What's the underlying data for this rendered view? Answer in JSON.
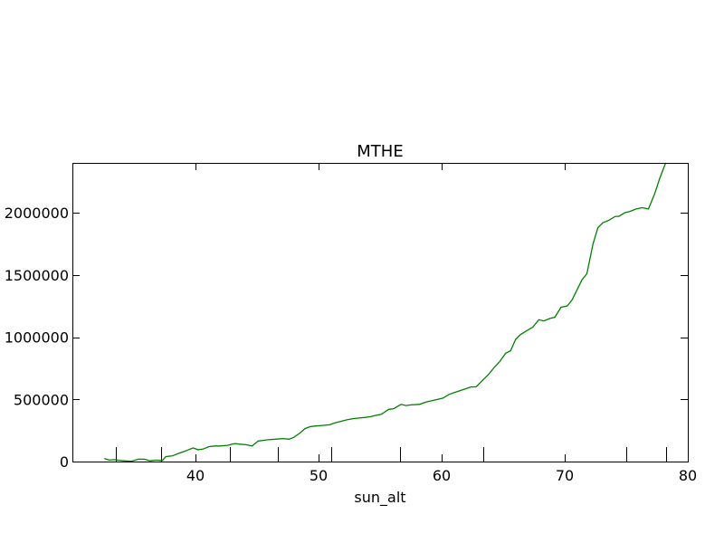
{
  "chart_data": {
    "type": "line",
    "title": "MTHE",
    "xlabel": "sun_alt",
    "ylabel": "",
    "xlim": [
      30,
      80
    ],
    "ylim": [
      0,
      2400000
    ],
    "xticks": [
      40,
      50,
      60,
      70,
      80
    ],
    "xtick_labels": [
      "40",
      "50",
      "60",
      "70",
      "80"
    ],
    "yticks": [
      0,
      500000,
      1000000,
      1500000,
      2000000
    ],
    "ytick_labels": [
      "0",
      "500000",
      "1000000",
      "1500000",
      "2000000"
    ],
    "minor_bottom_ticks": [
      33.5,
      37.2,
      42.8,
      46.7,
      51.0,
      56.6,
      63.4,
      75.0,
      78.2
    ],
    "grid": false,
    "legend": "none",
    "series_color": "#008000",
    "series": [
      {
        "x": [
          32.6,
          33.0,
          33.4,
          33.8,
          34.3,
          34.8,
          35.4,
          35.9,
          36.3,
          36.8,
          37.3,
          37.6,
          38.1,
          38.6,
          39.2,
          39.8,
          40.2,
          40.6,
          41.1,
          41.6,
          42.0,
          42.6,
          43.2,
          43.6,
          44.1,
          44.6,
          45.1,
          45.5,
          45.9,
          46.5,
          47.1,
          47.6,
          48.0,
          48.5,
          48.9,
          49.3,
          49.7,
          50.3,
          50.9,
          51.3,
          51.7,
          52.3,
          52.8,
          53.3,
          53.8,
          54.2,
          54.6,
          55.1,
          55.7,
          56.1,
          56.7,
          57.1,
          57.5,
          58.2,
          58.8,
          59.5,
          60.1,
          60.6,
          61.2,
          61.8,
          62.4,
          62.8,
          63.3,
          63.8,
          64.3,
          64.7,
          65.2,
          65.6,
          66.0,
          66.4,
          66.9,
          67.4,
          67.9,
          68.3,
          68.8,
          69.2,
          69.7,
          70.2,
          70.6,
          71.0,
          71.4,
          71.8,
          72.3,
          72.7,
          73.1,
          73.6,
          74.1,
          74.4,
          74.9,
          75.3,
          75.8,
          76.3,
          76.8,
          77.3,
          77.7,
          78.2,
          78.6,
          78.8
        ],
        "y": [
          25000,
          12000,
          15000,
          10000,
          5000,
          3000,
          20000,
          18000,
          6000,
          12000,
          8000,
          40000,
          45000,
          65000,
          85000,
          110000,
          95000,
          100000,
          120000,
          125000,
          125000,
          130000,
          145000,
          140000,
          135000,
          125000,
          165000,
          170000,
          175000,
          180000,
          185000,
          180000,
          195000,
          230000,
          265000,
          280000,
          285000,
          290000,
          295000,
          310000,
          320000,
          335000,
          345000,
          350000,
          355000,
          360000,
          370000,
          380000,
          420000,
          425000,
          460000,
          450000,
          455000,
          460000,
          480000,
          495000,
          510000,
          540000,
          560000,
          580000,
          600000,
          600000,
          650000,
          700000,
          760000,
          800000,
          870000,
          890000,
          980000,
          1020000,
          1050000,
          1080000,
          1140000,
          1130000,
          1150000,
          1160000,
          1240000,
          1250000,
          1300000,
          1380000,
          1460000,
          1510000,
          1750000,
          1880000,
          1920000,
          1940000,
          1970000,
          1970000,
          2000000,
          2010000,
          2030000,
          2040000,
          2030000,
          2150000,
          2270000,
          2400000,
          2460000,
          2500000
        ]
      }
    ]
  }
}
